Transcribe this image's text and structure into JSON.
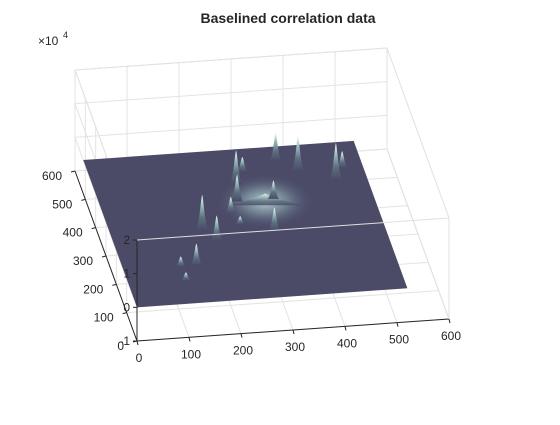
{
  "chart_data": {
    "type": "surface",
    "title": "Baselined correlation data",
    "xlabel": "",
    "ylabel": "",
    "zlabel": "",
    "xlim": [
      0,
      600
    ],
    "ylim": [
      0,
      600
    ],
    "zlim": [
      -10000,
      20000
    ],
    "xticks": [
      "0",
      "100",
      "200",
      "300",
      "400",
      "500",
      "600"
    ],
    "yticks": [
      "0",
      "100",
      "200",
      "300",
      "400",
      "500",
      "600"
    ],
    "zticks": [
      "-1",
      "0",
      "1",
      "2"
    ],
    "z_exponent_base": "×10",
    "z_exponent_power": "4",
    "grid": true,
    "colormap": "bone",
    "surface_extent": {
      "x": [
        0,
        520
      ],
      "y": [
        0,
        520
      ]
    },
    "peaks": [
      {
        "x": 175,
        "y": 250,
        "z": 10500
      },
      {
        "x": 195,
        "y": 210,
        "z": 7500
      },
      {
        "x": 140,
        "y": 130,
        "z": 6500
      },
      {
        "x": 260,
        "y": 340,
        "z": 8000
      },
      {
        "x": 240,
        "y": 300,
        "z": 5000
      },
      {
        "x": 270,
        "y": 400,
        "z": 10000
      },
      {
        "x": 290,
        "y": 440,
        "z": 4500
      },
      {
        "x": 330,
        "y": 340,
        "z": 5500
      },
      {
        "x": 310,
        "y": 230,
        "z": 7000
      },
      {
        "x": 250,
        "y": 260,
        "z": 2500
      },
      {
        "x": 360,
        "y": 470,
        "z": 8500
      },
      {
        "x": 395,
        "y": 430,
        "z": 10500
      },
      {
        "x": 460,
        "y": 390,
        "z": 11000
      },
      {
        "x": 480,
        "y": 430,
        "z": 5000
      },
      {
        "x": 110,
        "y": 130,
        "z": 3000
      },
      {
        "x": 110,
        "y": 80,
        "z": 2500
      }
    ],
    "ridges": [
      {
        "x": 310,
        "y": 320,
        "sigma": 55,
        "z": 3500
      }
    ]
  }
}
